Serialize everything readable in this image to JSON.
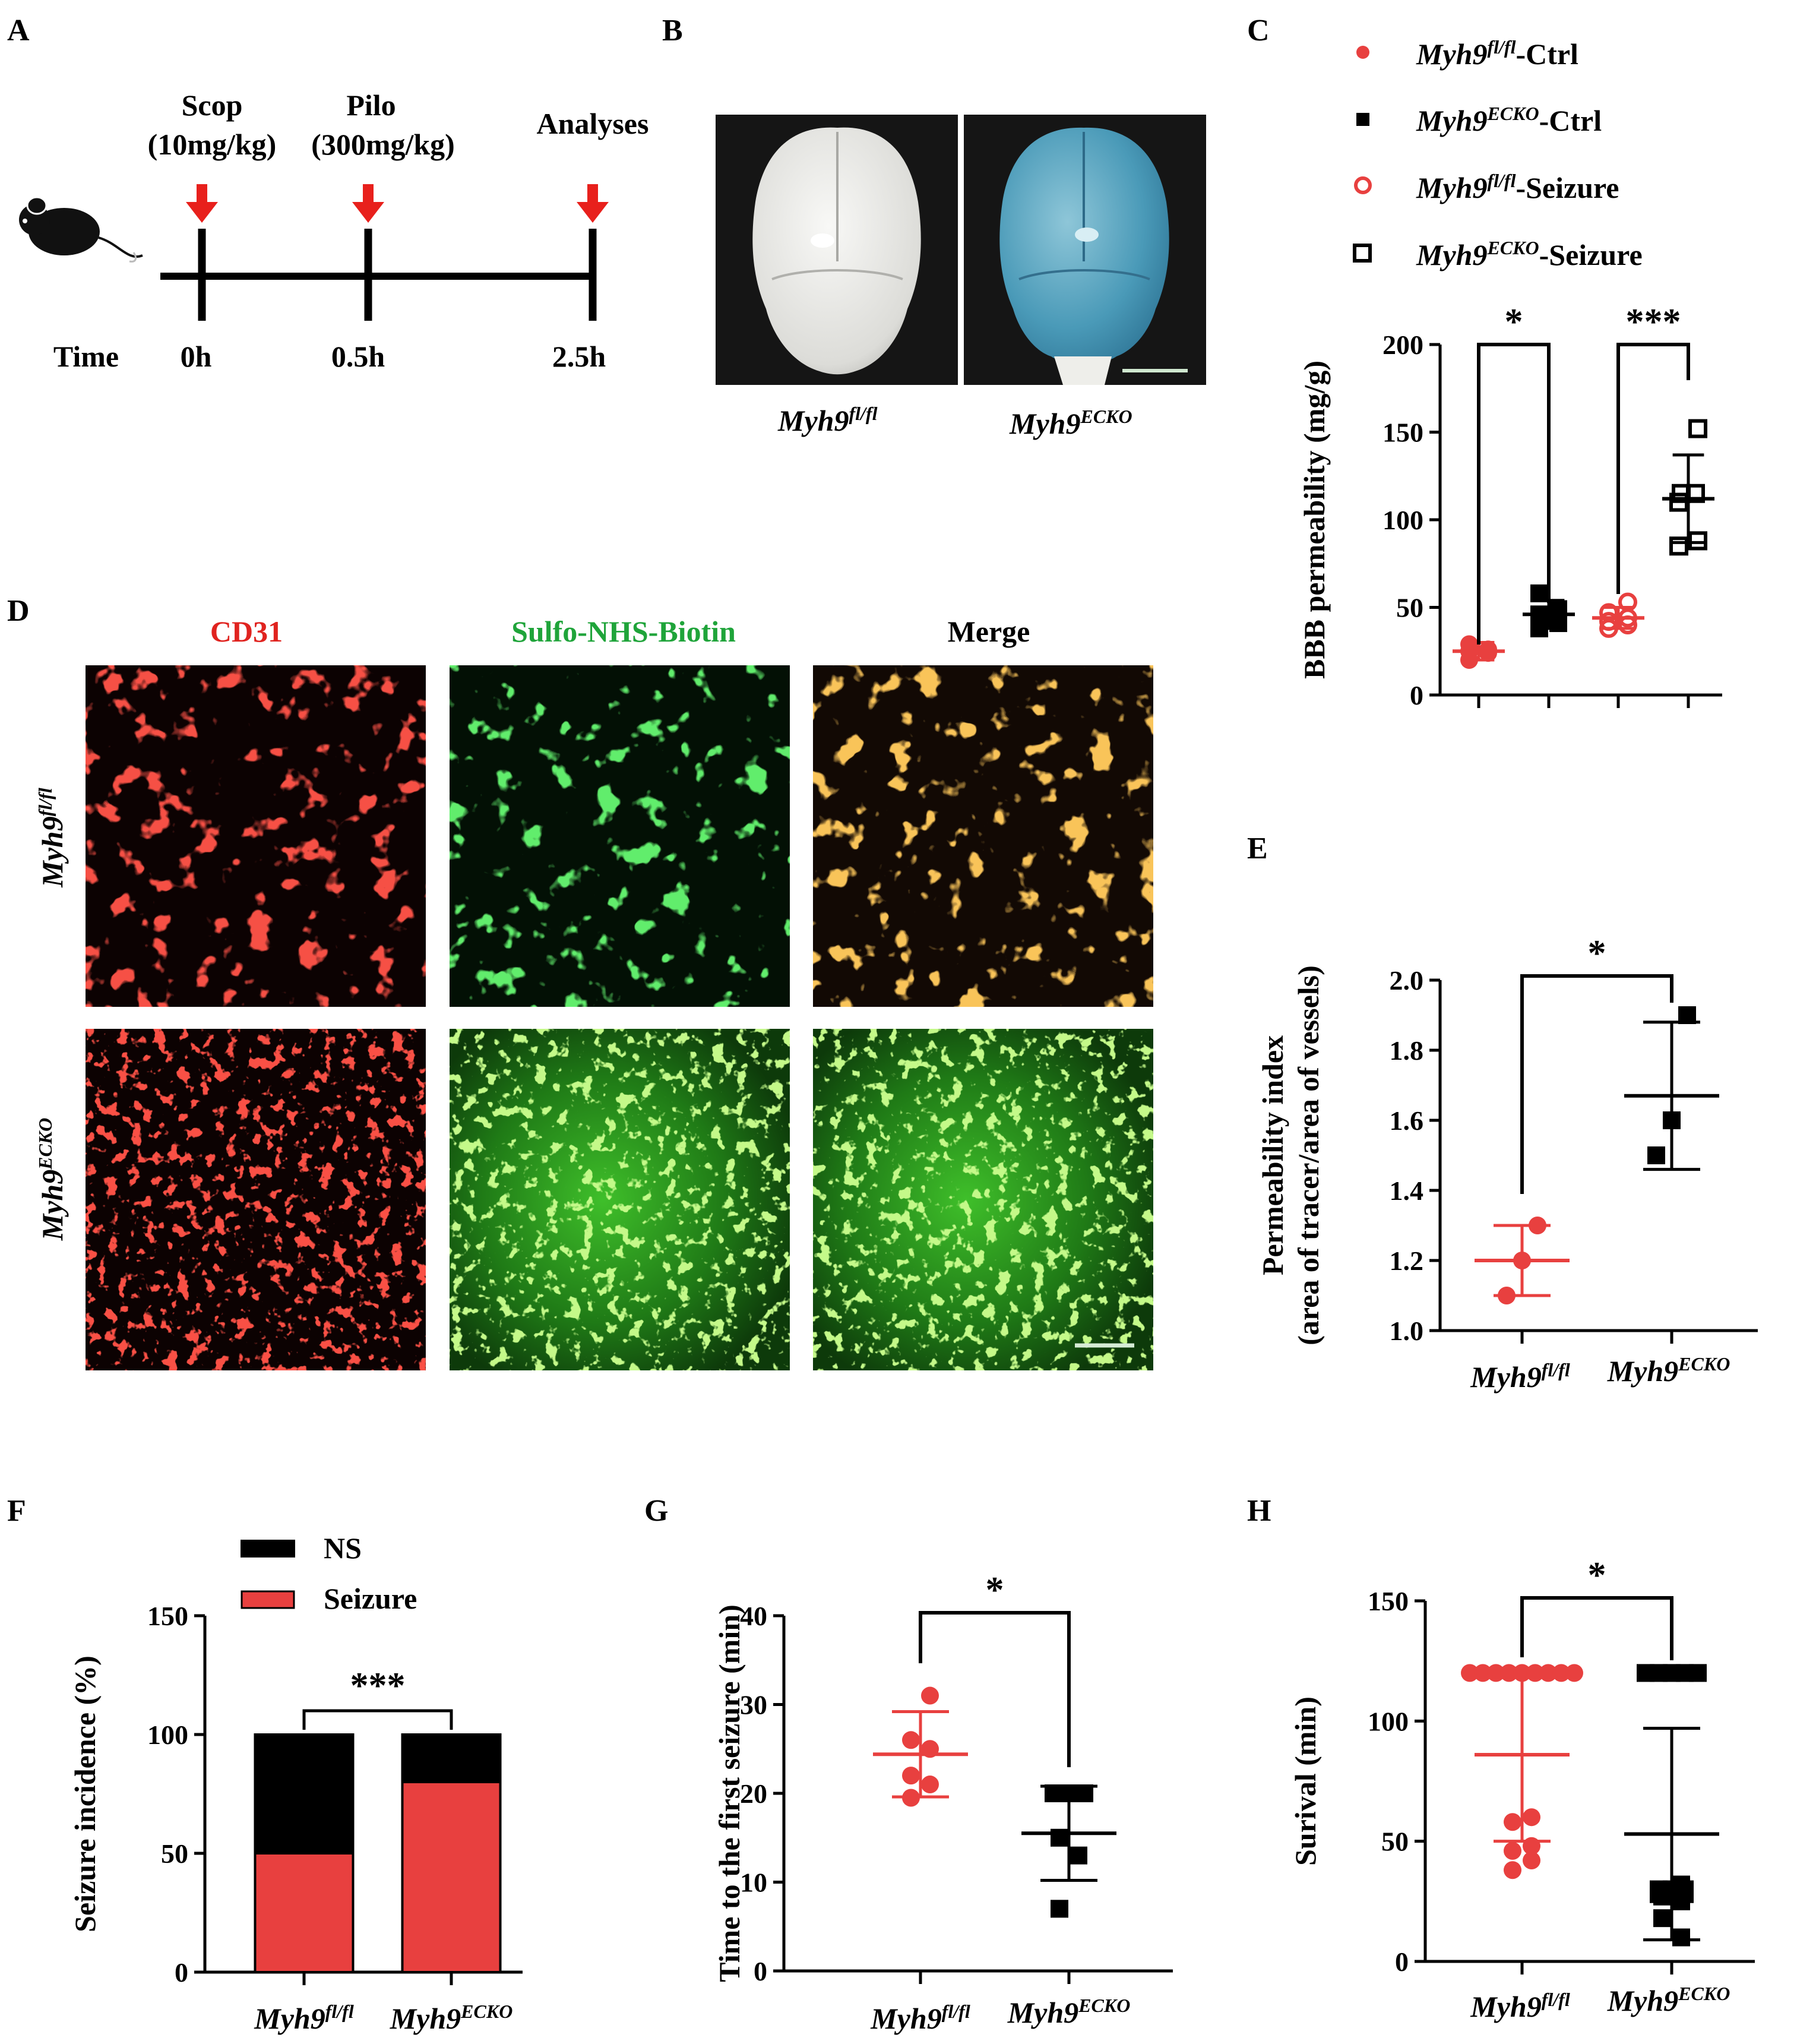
{
  "panel_letters": {
    "A": "A",
    "B": "B",
    "C": "C",
    "D": "D",
    "E": "E",
    "F": "F",
    "G": "G",
    "H": "H"
  },
  "genotypes": {
    "fl_base": "Myh9",
    "fl_sup": "fl/fl",
    "ecko_base": "Myh9",
    "ecko_sup": "ECKO"
  },
  "colors": {
    "red": "#e8403f",
    "black": "#000000",
    "arrow": "#e8201c",
    "tissue_bg": "#101010"
  },
  "panel_a": {
    "events": [
      {
        "name": "Scop",
        "dose": "(10mg/kg)",
        "time": "0h"
      },
      {
        "name": "Pilo",
        "dose": "(300mg/kg)",
        "time": "0.5h"
      },
      {
        "name": "Analyses",
        "dose": "",
        "time": "2.5h"
      }
    ],
    "time_label": "Time",
    "icon": "mouse-icon"
  },
  "panel_b": {
    "images": [
      "brain-photo-myh9-flfl",
      "brain-photo-myh9-ecko"
    ],
    "scale_bar": true
  },
  "panel_d": {
    "columns": [
      "CD31",
      "Sulfo-NHS-Biotin",
      "Merge"
    ],
    "column_colors": [
      "#e0231f",
      "#1fa43a",
      "#000000"
    ],
    "rows": [
      "fl",
      "ecko"
    ]
  },
  "legend_c": [
    {
      "suffix": "-Ctrl",
      "geno": "fl",
      "marker": "circle-filled",
      "color": "#e8403f"
    },
    {
      "suffix": "-Ctrl",
      "geno": "ecko",
      "marker": "square-filled",
      "color": "#000000"
    },
    {
      "suffix": "-Seizure",
      "geno": "fl",
      "marker": "circle-open",
      "color": "#e8403f"
    },
    {
      "suffix": "-Seizure",
      "geno": "ecko",
      "marker": "square-open",
      "color": "#000000"
    }
  ],
  "legend_f": [
    {
      "label": "NS",
      "color": "#000000"
    },
    {
      "label": "Seizure",
      "color": "#e8403f"
    }
  ],
  "chart_data": [
    {
      "panel": "C",
      "type": "scatter",
      "ylabel": "BBB permeability (mg/g)",
      "ylim": [
        0,
        200
      ],
      "yticks": [
        0,
        50,
        100,
        150,
        200
      ],
      "groups": [
        {
          "geno": "fl",
          "suffix": "-Ctrl",
          "marker": "circle-filled",
          "color": "#e8403f",
          "values": [
            20,
            24,
            25,
            26,
            29
          ],
          "mean": 25,
          "sd": 5
        },
        {
          "geno": "ecko",
          "suffix": "-Ctrl",
          "marker": "square-filled",
          "color": "#000000",
          "values": [
            38,
            41,
            46,
            49,
            58
          ],
          "mean": 46,
          "sd": 8
        },
        {
          "geno": "fl",
          "suffix": "-Seizure",
          "marker": "circle-open",
          "color": "#e8403f",
          "values": [
            38,
            40,
            42,
            44,
            47,
            53
          ],
          "mean": 44,
          "sd": 6
        },
        {
          "geno": "ecko",
          "suffix": "-Seizure",
          "marker": "square-open",
          "color": "#000000",
          "values": [
            85,
            88,
            110,
            115,
            115,
            152
          ],
          "mean": 112,
          "sd": 25
        }
      ],
      "comparisons": [
        {
          "from": 0,
          "to": 1,
          "label": "*"
        },
        {
          "from": 2,
          "to": 3,
          "label": "***"
        }
      ]
    },
    {
      "panel": "E",
      "type": "scatter",
      "ylabel": "Permeability index",
      "ylabel2": "(area of tracer/area of vessels)",
      "ylim": [
        1.0,
        2.0
      ],
      "yticks": [
        "1.0",
        "1.2",
        "1.4",
        "1.6",
        "1.8",
        "2.0"
      ],
      "groups": [
        {
          "geno": "fl",
          "marker": "circle-filled",
          "color": "#e8403f",
          "values": [
            1.1,
            1.2,
            1.3
          ],
          "mean": 1.2,
          "sd": 0.1
        },
        {
          "geno": "ecko",
          "marker": "square-filled",
          "color": "#000000",
          "values": [
            1.5,
            1.6,
            1.9
          ],
          "mean": 1.67,
          "sd": 0.21
        }
      ],
      "comparisons": [
        {
          "from": 0,
          "to": 1,
          "label": "*"
        }
      ]
    },
    {
      "panel": "F",
      "type": "bar",
      "stacked": true,
      "ylabel": "Seizure incidence (%)",
      "ylim": [
        0,
        150
      ],
      "yticks": [
        0,
        50,
        100,
        150
      ],
      "categories": [
        "fl",
        "ecko"
      ],
      "series": [
        {
          "name": "Seizure",
          "color": "#e8403f",
          "values": [
            50,
            80
          ]
        },
        {
          "name": "NS",
          "color": "#000000",
          "values": [
            50,
            20
          ]
        }
      ],
      "comparisons": [
        {
          "from": 0,
          "to": 1,
          "label": "***"
        }
      ]
    },
    {
      "panel": "G",
      "type": "scatter",
      "ylabel": "Time to the first seizure (min)",
      "ylim": [
        0,
        40
      ],
      "yticks": [
        0,
        10,
        20,
        30,
        40
      ],
      "groups": [
        {
          "geno": "fl",
          "marker": "circle-filled",
          "color": "#e8403f",
          "values": [
            19.5,
            21,
            22,
            25,
            26,
            31
          ],
          "mean": 24.4,
          "sd": 4.8
        },
        {
          "geno": "ecko",
          "marker": "square-filled",
          "color": "#000000",
          "values": [
            7,
            13,
            15,
            20,
            20,
            20
          ],
          "mean": 15.5,
          "sd": 5.3
        }
      ],
      "comparisons": [
        {
          "from": 0,
          "to": 1,
          "label": "*"
        }
      ]
    },
    {
      "panel": "H",
      "type": "scatter",
      "ylabel": "Surival (min)",
      "ylim": [
        0,
        150
      ],
      "yticks": [
        0,
        50,
        100,
        150
      ],
      "groups": [
        {
          "geno": "fl",
          "marker": "circle-filled",
          "color": "#e8403f",
          "values": [
            120,
            120,
            120,
            120,
            120,
            120,
            120,
            120,
            120,
            60,
            58,
            48,
            46,
            42,
            38
          ],
          "mean": 86,
          "sd": 36
        },
        {
          "geno": "ecko",
          "marker": "square-filled",
          "color": "#000000",
          "values": [
            120,
            120,
            120,
            120,
            120,
            32,
            30,
            30,
            30,
            28,
            28,
            28,
            27,
            25,
            18,
            10
          ],
          "mean": 53,
          "sd": 44
        },
        {
          "skip": true
        }
      ],
      "comparisons": [
        {
          "from": 0,
          "to": 1,
          "label": "*"
        }
      ]
    }
  ]
}
